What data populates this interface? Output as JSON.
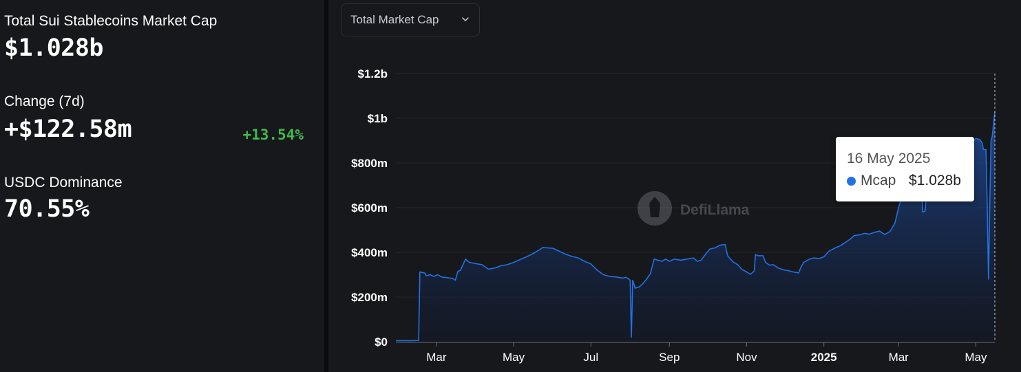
{
  "stats": {
    "mcap_label": "Total Sui Stablecoins Market Cap",
    "mcap_value": "$1.028b",
    "change_label": "Change (7d)",
    "change_value": "+$122.58m",
    "change_pct": "+13.54%",
    "dominance_label": "USDC Dominance",
    "dominance_value": "70.55%"
  },
  "dropdown": {
    "label": "Total Market Cap"
  },
  "watermark": "DefiLlama",
  "tooltip": {
    "date": "16 May 2025",
    "series": "Mcap",
    "value": "$1.028b"
  },
  "colors": {
    "line": "#2172e5",
    "positive": "#3fb950",
    "background": "#17181b"
  },
  "chart_data": {
    "type": "area",
    "ylim": [
      0,
      1200
    ],
    "y_unit": "m",
    "yticks": [
      {
        "value": 0,
        "label": "$0"
      },
      {
        "value": 200,
        "label": "$200m"
      },
      {
        "value": 400,
        "label": "$400m"
      },
      {
        "value": 600,
        "label": "$600m"
      },
      {
        "value": 800,
        "label": "$800m"
      },
      {
        "value": 1000,
        "label": "$1b"
      },
      {
        "value": 1200,
        "label": "$1.2b"
      }
    ],
    "xlim": [
      "2024-01-29",
      "2025-05-16"
    ],
    "xticks": [
      {
        "date": "2024-03-01",
        "label": "Mar",
        "bold": false
      },
      {
        "date": "2024-05-01",
        "label": "May",
        "bold": false
      },
      {
        "date": "2024-07-01",
        "label": "Jul",
        "bold": false
      },
      {
        "date": "2024-09-01",
        "label": "Sep",
        "bold": false
      },
      {
        "date": "2024-11-01",
        "label": "Nov",
        "bold": false
      },
      {
        "date": "2025-01-01",
        "label": "2025",
        "bold": true
      },
      {
        "date": "2025-03-01",
        "label": "Mar",
        "bold": false
      },
      {
        "date": "2025-05-01",
        "label": "May",
        "bold": false
      }
    ],
    "grid": true,
    "legend": "none",
    "series": [
      {
        "name": "Mcap",
        "points": [
          [
            "2024-01-29",
            5
          ],
          [
            "2024-02-11",
            5
          ],
          [
            "2024-02-16",
            6
          ],
          [
            "2024-02-17",
            313
          ],
          [
            "2024-02-19",
            310
          ],
          [
            "2024-02-21",
            307
          ],
          [
            "2024-02-22",
            295
          ],
          [
            "2024-02-25",
            300
          ],
          [
            "2024-02-28",
            292
          ],
          [
            "2024-03-02",
            300
          ],
          [
            "2024-03-05",
            290
          ],
          [
            "2024-03-09",
            287
          ],
          [
            "2024-03-14",
            283
          ],
          [
            "2024-03-16",
            275
          ],
          [
            "2024-03-18",
            315
          ],
          [
            "2024-03-20",
            320
          ],
          [
            "2024-03-24",
            370
          ],
          [
            "2024-03-27",
            355
          ],
          [
            "2024-04-01",
            350
          ],
          [
            "2024-04-06",
            345
          ],
          [
            "2024-04-11",
            325
          ],
          [
            "2024-04-16",
            330
          ],
          [
            "2024-04-21",
            340
          ],
          [
            "2024-04-26",
            345
          ],
          [
            "2024-05-01",
            355
          ],
          [
            "2024-05-05",
            365
          ],
          [
            "2024-05-09",
            375
          ],
          [
            "2024-05-13",
            385
          ],
          [
            "2024-05-17",
            397
          ],
          [
            "2024-05-21",
            410
          ],
          [
            "2024-05-24",
            422
          ],
          [
            "2024-05-28",
            420
          ],
          [
            "2024-06-01",
            418
          ],
          [
            "2024-06-06",
            405
          ],
          [
            "2024-06-11",
            392
          ],
          [
            "2024-06-16",
            382
          ],
          [
            "2024-06-21",
            375
          ],
          [
            "2024-06-26",
            360
          ],
          [
            "2024-07-01",
            348
          ],
          [
            "2024-07-06",
            320
          ],
          [
            "2024-07-11",
            300
          ],
          [
            "2024-07-16",
            292
          ],
          [
            "2024-07-21",
            290
          ],
          [
            "2024-07-26",
            285
          ],
          [
            "2024-07-29",
            288
          ],
          [
            "2024-07-31",
            280
          ],
          [
            "2024-08-01",
            275
          ],
          [
            "2024-08-02",
            20
          ],
          [
            "2024-08-03",
            275
          ],
          [
            "2024-08-05",
            240
          ],
          [
            "2024-08-08",
            245
          ],
          [
            "2024-08-11",
            260
          ],
          [
            "2024-08-14",
            280
          ],
          [
            "2024-08-17",
            305
          ],
          [
            "2024-08-20",
            370
          ],
          [
            "2024-08-23",
            365
          ],
          [
            "2024-08-26",
            360
          ],
          [
            "2024-08-29",
            370
          ],
          [
            "2024-09-01",
            360
          ],
          [
            "2024-09-05",
            370
          ],
          [
            "2024-09-10",
            365
          ],
          [
            "2024-09-15",
            370
          ],
          [
            "2024-09-20",
            375
          ],
          [
            "2024-09-23",
            360
          ],
          [
            "2024-09-26",
            365
          ],
          [
            "2024-09-30",
            395
          ],
          [
            "2024-10-03",
            415
          ],
          [
            "2024-10-07",
            420
          ],
          [
            "2024-10-11",
            432
          ],
          [
            "2024-10-15",
            435
          ],
          [
            "2024-10-17",
            385
          ],
          [
            "2024-10-21",
            358
          ],
          [
            "2024-10-25",
            345
          ],
          [
            "2024-10-28",
            325
          ],
          [
            "2024-11-01",
            312
          ],
          [
            "2024-11-04",
            302
          ],
          [
            "2024-11-07",
            316
          ],
          [
            "2024-11-08",
            390
          ],
          [
            "2024-11-10",
            385
          ],
          [
            "2024-11-14",
            385
          ],
          [
            "2024-11-16",
            355
          ],
          [
            "2024-11-19",
            343
          ],
          [
            "2024-11-22",
            345
          ],
          [
            "2024-11-26",
            330
          ],
          [
            "2024-11-30",
            322
          ],
          [
            "2024-12-04",
            318
          ],
          [
            "2024-12-08",
            312
          ],
          [
            "2024-12-12",
            308
          ],
          [
            "2024-12-14",
            335
          ],
          [
            "2024-12-16",
            355
          ],
          [
            "2024-12-20",
            368
          ],
          [
            "2024-12-24",
            375
          ],
          [
            "2024-12-28",
            372
          ],
          [
            "2025-01-01",
            380
          ],
          [
            "2025-01-05",
            405
          ],
          [
            "2025-01-10",
            420
          ],
          [
            "2025-01-14",
            430
          ],
          [
            "2025-01-18",
            445
          ],
          [
            "2025-01-22",
            460
          ],
          [
            "2025-01-25",
            475
          ],
          [
            "2025-01-29",
            478
          ],
          [
            "2025-02-02",
            485
          ],
          [
            "2025-02-06",
            482
          ],
          [
            "2025-02-10",
            490
          ],
          [
            "2025-02-14",
            495
          ],
          [
            "2025-02-18",
            480
          ],
          [
            "2025-02-22",
            492
          ],
          [
            "2025-02-26",
            530
          ],
          [
            "2025-03-01",
            600
          ],
          [
            "2025-03-04",
            660
          ],
          [
            "2025-03-08",
            700
          ],
          [
            "2025-03-12",
            708
          ],
          [
            "2025-03-16",
            710
          ],
          [
            "2025-03-19",
            712
          ],
          [
            "2025-03-20",
            580
          ],
          [
            "2025-03-22",
            585
          ],
          [
            "2025-03-23",
            680
          ],
          [
            "2025-03-26",
            700
          ],
          [
            "2025-03-30",
            706
          ],
          [
            "2025-04-03",
            712
          ],
          [
            "2025-04-08",
            860
          ],
          [
            "2025-04-12",
            885
          ],
          [
            "2025-04-16",
            888
          ],
          [
            "2025-04-20",
            890
          ],
          [
            "2025-04-24",
            895
          ],
          [
            "2025-04-28",
            892
          ],
          [
            "2025-05-01",
            910
          ],
          [
            "2025-05-04",
            905
          ],
          [
            "2025-05-06",
            890
          ],
          [
            "2025-05-07",
            860
          ],
          [
            "2025-05-09",
            860
          ],
          [
            "2025-05-10",
            600
          ],
          [
            "2025-05-11",
            280
          ],
          [
            "2025-05-12",
            600
          ],
          [
            "2025-05-13",
            900
          ],
          [
            "2025-05-14",
            920
          ],
          [
            "2025-05-15",
            980
          ],
          [
            "2025-05-16",
            1028
          ]
        ]
      }
    ]
  }
}
